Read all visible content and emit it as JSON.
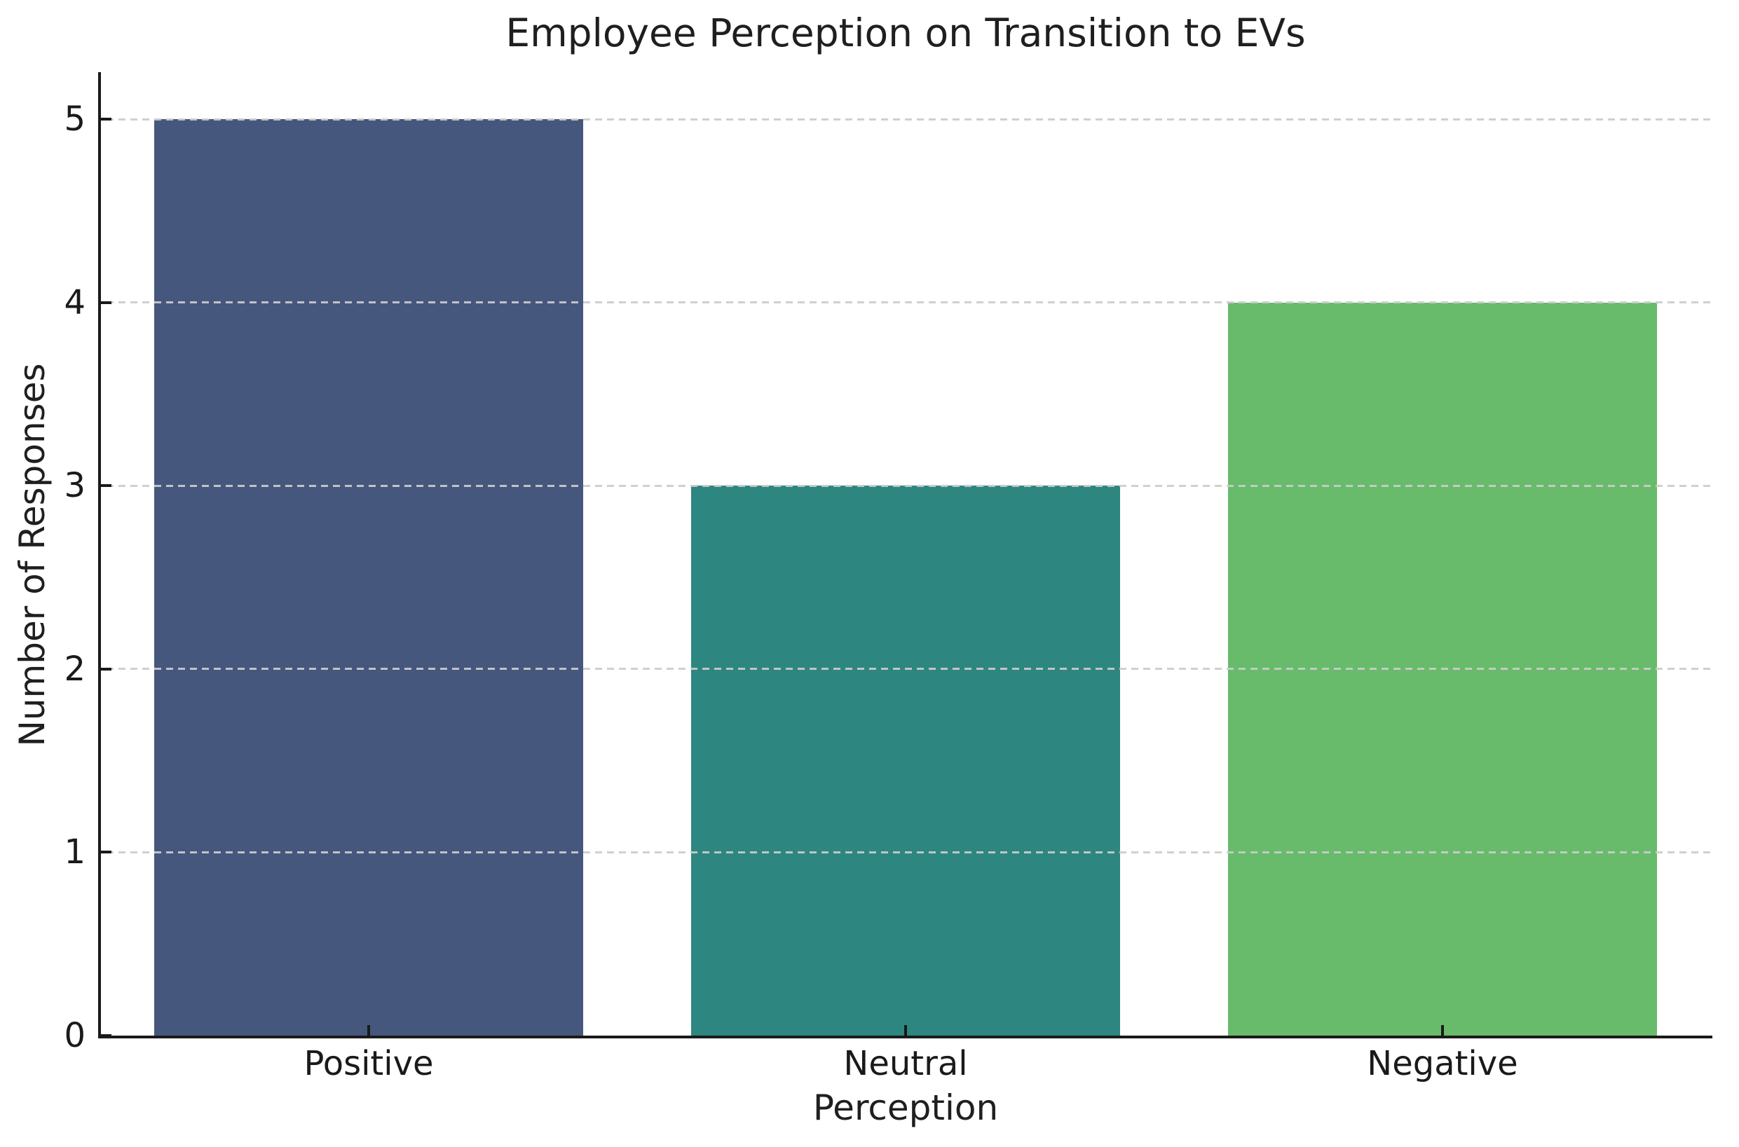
{
  "chart_data": {
    "type": "bar",
    "title": "Employee Perception on Transition to EVs",
    "xlabel": "Perception",
    "ylabel": "Number of Responses",
    "categories": [
      "Positive",
      "Neutral",
      "Negative"
    ],
    "values": [
      5,
      3,
      4
    ],
    "series": [
      {
        "name": "Number of Responses",
        "values": [
          5,
          3,
          4
        ]
      }
    ],
    "bar_colors": [
      "#46577e",
      "#2e8681",
      "#67bb6b"
    ],
    "ylim": [
      0,
      5.25
    ],
    "yticks": [
      0,
      1,
      2,
      3,
      4,
      5
    ],
    "grid": "horizontal dashed, drawn over bars",
    "grid_color": "#cccccc",
    "axis_color": "#1a1a1a",
    "text_color": "#1a1a1a",
    "background_color": "#ffffff",
    "legend": "none",
    "bar_width_fraction": 0.8,
    "tick_direction": "in",
    "spines": [
      "left",
      "bottom"
    ]
  }
}
